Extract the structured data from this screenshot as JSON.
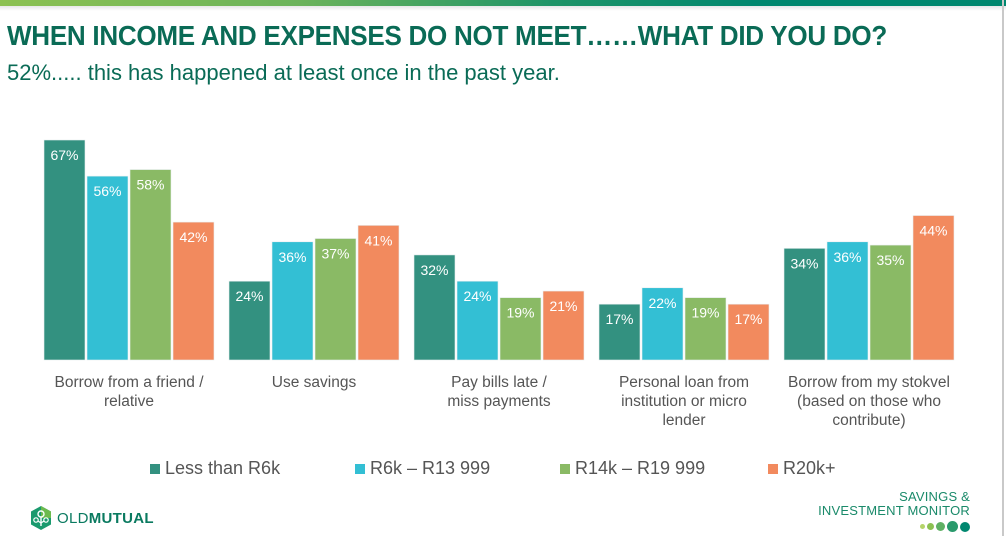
{
  "header": {
    "title": "WHEN INCOME AND EXPENSES DO NOT MEET……WHAT DID YOU DO?",
    "subtitle": "52%..... this has happened at least once in the past year."
  },
  "chart_data": {
    "type": "bar",
    "title": "WHEN INCOME AND EXPENSES DO NOT MEET……WHAT DID YOU DO?",
    "subtitle": "52%..... this has happened at least once in the past year.",
    "xlabel": "",
    "ylabel": "",
    "ylim": [
      0,
      70
    ],
    "grid": false,
    "legend_position": "bottom",
    "value_format": "percent",
    "categories": [
      "Borrow from a friend / relative",
      "Use savings",
      "Pay bills late / miss payments",
      "Personal loan from institution or micro lender",
      "Borrow from my stokvel (based on those who contribute)"
    ],
    "category_lines": [
      [
        "Borrow from a friend /",
        "relative"
      ],
      [
        "Use savings"
      ],
      [
        "Pay bills late /",
        "miss payments"
      ],
      [
        "Personal loan from",
        "institution or micro",
        "lender"
      ],
      [
        "Borrow from my stokvel",
        "(based on those who",
        "contribute)"
      ]
    ],
    "series": [
      {
        "name": "Less than R6k",
        "color": "#339180",
        "values": [
          67,
          24,
          32,
          17,
          34
        ]
      },
      {
        "name": "R6k – R13 999",
        "color": "#33bfd4",
        "values": [
          56,
          36,
          24,
          22,
          36
        ]
      },
      {
        "name": "R14k – R19 999",
        "color": "#8aba65",
        "values": [
          58,
          37,
          19,
          19,
          35
        ]
      },
      {
        "name": "R20k+",
        "color": "#f28a5e",
        "values": [
          42,
          41,
          21,
          17,
          44
        ]
      }
    ]
  },
  "footer": {
    "brand_light": "OLD",
    "brand_bold": "MUTUAL",
    "monitor_line1": "SAVINGS &",
    "monitor_line2": "INVESTMENT MONITOR"
  },
  "colors": {
    "title": "#0a6b56",
    "brand": "#0a7a60",
    "dots": [
      "#b5d46a",
      "#8cc152",
      "#5fb064",
      "#2a9a6c",
      "#00876f"
    ]
  }
}
